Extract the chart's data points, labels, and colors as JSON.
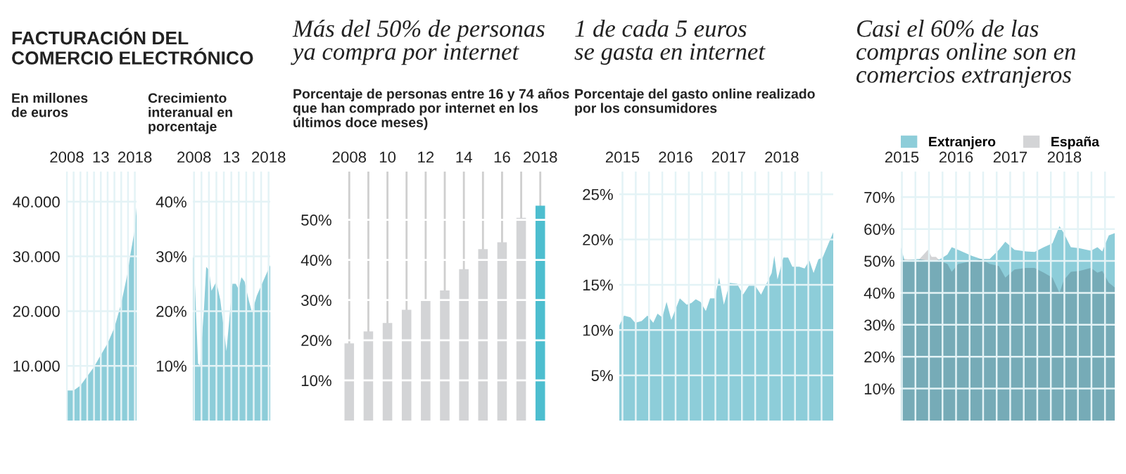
{
  "chart_data": [
    {
      "type": "area",
      "title": "FACTURACIÓN DEL\nCOMERCIO ELECTRÓNICO",
      "subtitle": "En millones\nde euros",
      "x": [
        2007.9,
        2009,
        2010,
        2011,
        2012,
        2013,
        2014,
        2015,
        2016,
        2017,
        2017.3,
        2018,
        2018.25
      ],
      "series": [
        {
          "color": "#8dcdd9",
          "values": [
            5500,
            5500,
            6400,
            8100,
            9800,
            12000,
            14100,
            17000,
            21400,
            27300,
            30000,
            35000,
            39000
          ]
        }
      ],
      "xlim": [
        2007.9,
        2018.25
      ],
      "ylim": [
        0,
        45500
      ],
      "xticks": [
        2008,
        {
          "value": 2009,
          "label": null
        },
        {
          "value": 2010,
          "label": null
        },
        {
          "value": 2011,
          "label": null
        },
        {
          "value": 2012,
          "label": null
        },
        {
          "value": 2013,
          "label": "13"
        },
        {
          "value": 2014,
          "label": null
        },
        {
          "value": 2015,
          "label": null
        },
        {
          "value": 2016,
          "label": null
        },
        {
          "value": 2017,
          "label": null
        },
        2018
      ],
      "yticks": [
        {
          "value": 10000,
          "label": "10.000"
        },
        {
          "value": 20000,
          "label": "20.000"
        },
        {
          "value": 30000,
          "label": "30.000"
        },
        {
          "value": 40000,
          "label": "40.000"
        }
      ],
      "grid": true
    },
    {
      "type": "area",
      "subtitle": "Crecimiento\ninteranual en\nporcentaje",
      "x": [
        2007.84,
        2008,
        2008.54,
        2008.82,
        2009.36,
        2009.63,
        2010.01,
        2010.34,
        2010.99,
        2011.53,
        2012.35,
        2013.16,
        2013.6,
        2013.98,
        2014.36,
        2014.79,
        2015.34,
        2015.77,
        2016.42,
        2017.24,
        2018.22
      ],
      "series": [
        {
          "color": "#8dcdd9",
          "values": [
            30.1,
            29.2,
            10.4,
            10.0,
            21,
            28.1,
            27.5,
            23.7,
            25.4,
            22.0,
            12.7,
            25,
            25,
            24,
            26.2,
            25.4,
            22,
            19.8,
            22.8,
            25.4,
            28.4
          ]
        }
      ],
      "xlim": [
        2007.84,
        2018.22
      ],
      "ylim": [
        0,
        45.5
      ],
      "xticks": [
        2008,
        {
          "value": 2009,
          "label": null
        },
        {
          "value": 2010,
          "label": null
        },
        {
          "value": 2011,
          "label": null
        },
        {
          "value": 2012,
          "label": null
        },
        {
          "value": 2013,
          "label": "13"
        },
        {
          "value": 2014,
          "label": null
        },
        {
          "value": 2015,
          "label": null
        },
        {
          "value": 2016,
          "label": null
        },
        {
          "value": 2017,
          "label": null
        },
        2018
      ],
      "yticks": [
        {
          "value": 10,
          "label": "10%"
        },
        {
          "value": 20,
          "label": "20%"
        },
        {
          "value": 30,
          "label": "30%"
        },
        {
          "value": 40,
          "label": "40%"
        }
      ],
      "grid": true
    },
    {
      "type": "bar",
      "title": "Más del 50% de personas\nya compra por internet",
      "subtitle": "Porcentaje de personas entre 16 y 74 años\nque han comprado por internet en los\núltimos doce meses)",
      "categories": [
        "2008",
        null,
        "10",
        null,
        "12",
        null,
        "14",
        null,
        "16",
        null,
        "2018"
      ],
      "values": [
        19.2,
        22.2,
        24.3,
        27.6,
        30.1,
        32.4,
        37.7,
        42.7,
        44.4,
        50.5,
        53.5
      ],
      "colors": [
        "#d3d4d6",
        "#d3d4d6",
        "#d3d4d6",
        "#d3d4d6",
        "#d3d4d6",
        "#d3d4d6",
        "#d3d4d6",
        "#d3d4d6",
        "#d3d4d6",
        "#d3d4d6",
        "#4dbecf"
      ],
      "ylim": [
        0,
        62
      ],
      "yticks": [
        {
          "value": 10,
          "label": "10%"
        },
        {
          "value": 20,
          "label": "20%"
        },
        {
          "value": 30,
          "label": "30%"
        },
        {
          "value": 40,
          "label": "40%"
        },
        {
          "value": 50,
          "label": "50%"
        }
      ],
      "grid": true
    },
    {
      "type": "area",
      "title": "1 de cada 5 euros\nse gasta en internet",
      "subtitle": "Porcentaje del gasto online realizado\npor los consumidores",
      "x": [
        2014.94,
        2015.03,
        2015.15,
        2015.24,
        2015.36,
        2015.47,
        2015.58,
        2015.66,
        2015.75,
        2015.83,
        2015.92,
        2016.08,
        2016.21,
        2016.3,
        2016.38,
        2016.47,
        2016.57,
        2016.65,
        2016.74,
        2016.82,
        2016.91,
        2017.02,
        2017.16,
        2017.27,
        2017.38,
        2017.5,
        2017.61,
        2017.72,
        2017.81,
        2017.86,
        2017.92,
        2018.03,
        2018.12,
        2018.2,
        2018.33,
        2018.43,
        2018.52,
        2018.6,
        2018.69,
        2018.77,
        2018.97
      ],
      "series": [
        {
          "color": "#8dcdd9",
          "values": [
            10.5,
            11.6,
            11.4,
            10.8,
            11.0,
            11.6,
            10.8,
            11.8,
            11.4,
            13.1,
            11.1,
            13.5,
            12.8,
            13.0,
            13.4,
            13.1,
            12.1,
            13.5,
            13.5,
            15.8,
            12.8,
            15.2,
            15.1,
            13.9,
            14.9,
            14.9,
            13.9,
            15.2,
            16.3,
            18.2,
            15.6,
            18.0,
            18.0,
            17.0,
            17.0,
            16.8,
            17.7,
            16.3,
            17.8,
            18.0,
            20.8
          ]
        }
      ],
      "xlim": [
        2014.94,
        2018.97
      ],
      "ylim": [
        0,
        27.5
      ],
      "xticks": [
        2015,
        {
          "value": 2015.25,
          "label": null
        },
        {
          "value": 2015.5,
          "label": null
        },
        {
          "value": 2015.75,
          "label": null
        },
        2016,
        {
          "value": 2016.25,
          "label": null
        },
        {
          "value": 2016.5,
          "label": null
        },
        {
          "value": 2016.75,
          "label": null
        },
        2017,
        {
          "value": 2017.25,
          "label": null
        },
        {
          "value": 2017.5,
          "label": null
        },
        {
          "value": 2017.75,
          "label": null
        },
        2018,
        {
          "value": 2018.25,
          "label": null
        },
        {
          "value": 2018.5,
          "label": null
        },
        {
          "value": 2018.75,
          "label": null
        }
      ],
      "yticks": [
        {
          "value": 5,
          "label": "5%"
        },
        {
          "value": 10,
          "label": "10%"
        },
        {
          "value": 15,
          "label": "15%"
        },
        {
          "value": 20,
          "label": "20%"
        },
        {
          "value": 25,
          "label": "25%"
        }
      ],
      "grid": true
    },
    {
      "type": "area",
      "title": "Casi el 60% de las\ncompras online son en\ncomercios extranjeros",
      "x": [
        2014.98,
        2015.05,
        2015.3,
        2015.48,
        2015.55,
        2015.63,
        2015.71,
        2015.84,
        2015.92,
        2016.04,
        2016.29,
        2016.46,
        2016.62,
        2016.79,
        2016.91,
        2017.08,
        2017.29,
        2017.45,
        2017.62,
        2017.78,
        2017.91,
        2017.99,
        2018.12,
        2018.28,
        2018.49,
        2018.61,
        2018.7,
        2018.82,
        2018.93
      ],
      "series": [
        {
          "name": "Extranjero",
          "color": "#8dcdd9",
          "values": [
            54.3,
            50.1,
            50.6,
            50.1,
            50.1,
            50.1,
            50.6,
            52.0,
            54.3,
            53.5,
            51.6,
            50.6,
            50.6,
            53.5,
            56.0,
            53.5,
            53.0,
            52.8,
            54.3,
            55.5,
            60.9,
            58.7,
            54.3,
            54.0,
            53.2,
            54.3,
            53.0,
            58.0,
            58.7
          ]
        },
        {
          "name": "España",
          "color": "#171d27",
          "values": [
            49.9,
            50.6,
            50.1,
            53.5,
            51.3,
            51.3,
            49.9,
            49.1,
            46.6,
            49.1,
            49.9,
            50.6,
            49.1,
            48.4,
            44.8,
            47.3,
            47.8,
            47.8,
            46.3,
            44.8,
            40.0,
            44.0,
            46.6,
            46.9,
            47.8,
            46.3,
            46.9,
            43.2,
            41.7
          ]
        }
      ],
      "xlim": [
        2014.98,
        2018.93
      ],
      "ylim": [
        0,
        78
      ],
      "xticks": [
        2015,
        {
          "value": 2015.25,
          "label": null
        },
        {
          "value": 2015.5,
          "label": null
        },
        {
          "value": 2015.75,
          "label": null
        },
        2016,
        {
          "value": 2016.25,
          "label": null
        },
        {
          "value": 2016.5,
          "label": null
        },
        {
          "value": 2016.75,
          "label": null
        },
        2017,
        {
          "value": 2017.25,
          "label": null
        },
        {
          "value": 2017.5,
          "label": null
        },
        {
          "value": 2017.75,
          "label": null
        },
        2018,
        {
          "value": 2018.25,
          "label": null
        },
        {
          "value": 2018.5,
          "label": null
        },
        {
          "value": 2018.75,
          "label": null
        }
      ],
      "yticks": [
        {
          "value": 10,
          "label": "10%"
        },
        {
          "value": 20,
          "label": "20%"
        },
        {
          "value": 30,
          "label": "30%"
        },
        {
          "value": 40,
          "label": "40%"
        },
        {
          "value": 50,
          "label": "50%"
        },
        {
          "value": 60,
          "label": "60%"
        },
        {
          "value": 70,
          "label": "70%"
        }
      ],
      "grid": true,
      "legend": "top left"
    }
  ]
}
